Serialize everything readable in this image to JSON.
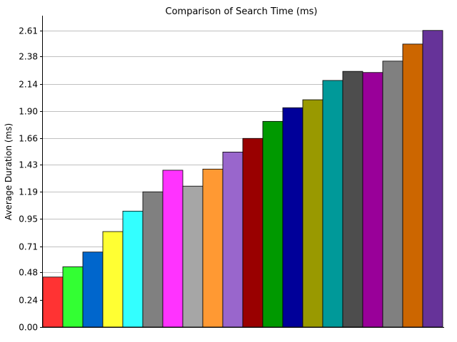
{
  "chart_data": {
    "type": "bar",
    "title": "Comparison of Search Time (ms)",
    "xlabel": "",
    "ylabel": "Average Duration (ms)",
    "ylim": [
      0,
      2.74
    ],
    "yticks": [
      "0.00",
      "0.24",
      "0.48",
      "0.71",
      "0.95",
      "1.19",
      "1.43",
      "1.66",
      "1.90",
      "2.14",
      "2.38",
      "2.61"
    ],
    "grid": true,
    "values": [
      0.44,
      0.53,
      0.66,
      0.84,
      1.02,
      1.19,
      1.38,
      1.24,
      1.39,
      1.54,
      1.66,
      1.81,
      1.93,
      2.0,
      2.17,
      2.25,
      2.24,
      2.34,
      2.49,
      2.61
    ],
    "colors": [
      "#ff3333",
      "#33ff33",
      "#0066cc",
      "#ffff33",
      "#33ffff",
      "#808080",
      "#ff33ff",
      "#a6a6a6",
      "#ff9933",
      "#9966cc",
      "#990000",
      "#009900",
      "#000099",
      "#999900",
      "#009999",
      "#4d4d4d",
      "#990099",
      "#808080",
      "#cc6600",
      "#663399"
    ]
  }
}
